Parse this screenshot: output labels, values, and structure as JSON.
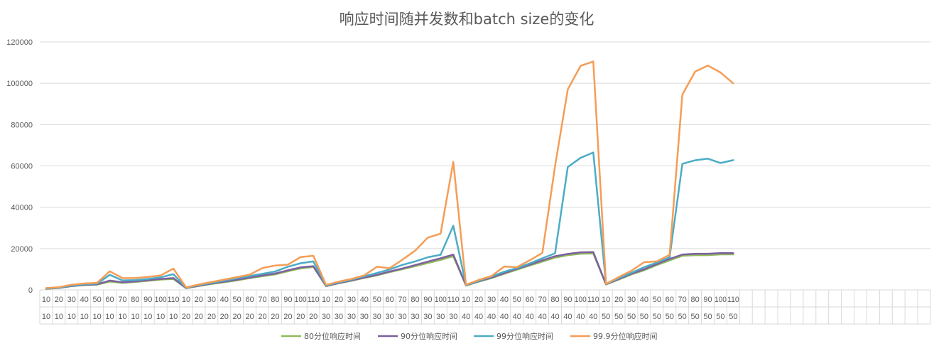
{
  "chart_data": {
    "type": "line",
    "title": "响应时间随并发数和batch size的变化",
    "xlabel": "",
    "ylabel": "",
    "ylim": [
      0,
      120000
    ],
    "yticks": [
      "0",
      "20000",
      "40000",
      "60000",
      "80000",
      "100000",
      "120000"
    ],
    "grid": true,
    "legend_position": "bottom",
    "x_level1": [
      "10",
      "20",
      "30",
      "40",
      "50",
      "60",
      "70",
      "80",
      "90",
      "100",
      "110",
      "10",
      "20",
      "30",
      "40",
      "50",
      "60",
      "70",
      "80",
      "90",
      "100",
      "110",
      "10",
      "20",
      "30",
      "40",
      "50",
      "60",
      "70",
      "80",
      "90",
      "100",
      "110",
      "10",
      "20",
      "30",
      "40",
      "50",
      "60",
      "70",
      "80",
      "90",
      "100",
      "110",
      "10",
      "20",
      "30",
      "40",
      "50",
      "60",
      "70",
      "80",
      "90",
      "100",
      "110"
    ],
    "x_level2": [
      "10",
      "10",
      "10",
      "10",
      "10",
      "10",
      "10",
      "10",
      "10",
      "10",
      "10",
      "20",
      "20",
      "20",
      "20",
      "20",
      "20",
      "20",
      "20",
      "20",
      "20",
      "20",
      "30",
      "30",
      "30",
      "30",
      "30",
      "30",
      "30",
      "30",
      "30",
      "30",
      "30",
      "40",
      "40",
      "40",
      "40",
      "40",
      "40",
      "40",
      "40",
      "40",
      "40",
      "40",
      "50",
      "50",
      "50",
      "50",
      "50",
      "50",
      "50",
      "50",
      "50",
      "50",
      "50"
    ],
    "empty_categories": 15,
    "series": [
      {
        "name": "80分位响应时间",
        "color": "#8fba5a",
        "values": [
          500,
          900,
          1800,
          2300,
          2500,
          4000,
          3400,
          3800,
          4400,
          5000,
          5300,
          800,
          1900,
          2900,
          3700,
          4600,
          5700,
          6600,
          7500,
          9000,
          10400,
          11100,
          1800,
          3200,
          4400,
          5800,
          7000,
          8600,
          10000,
          11500,
          13000,
          14500,
          16300,
          2100,
          4000,
          5700,
          7800,
          9800,
          11800,
          13700,
          15600,
          16800,
          17500,
          17600,
          2600,
          5000,
          7500,
          9500,
          12000,
          14300,
          16500,
          16800,
          16800,
          17200,
          17200
        ]
      },
      {
        "name": "90分位响应时间",
        "color": "#7d60a0",
        "values": [
          600,
          1000,
          1900,
          2400,
          2700,
          4500,
          3700,
          4100,
          4700,
          5300,
          5700,
          900,
          2000,
          3100,
          4000,
          4900,
          6000,
          7000,
          7900,
          9500,
          10900,
          11500,
          1900,
          3300,
          4600,
          6000,
          7300,
          8900,
          10400,
          12000,
          13700,
          15300,
          17100,
          2200,
          4200,
          6000,
          8100,
          10200,
          12200,
          14300,
          16300,
          17400,
          18200,
          18300,
          2700,
          5200,
          7800,
          10000,
          12500,
          15000,
          17100,
          17500,
          17500,
          17800,
          17800
        ]
      },
      {
        "name": "99分位响应时间",
        "color": "#4bacc6",
        "values": [
          700,
          1100,
          2100,
          2700,
          3000,
          7300,
          4600,
          4700,
          5300,
          6100,
          7600,
          1000,
          2300,
          3400,
          4500,
          5600,
          6700,
          7800,
          8900,
          11200,
          12900,
          13800,
          2100,
          3600,
          5000,
          6600,
          8200,
          9900,
          12100,
          13800,
          15800,
          17000,
          31000,
          2300,
          4400,
          6500,
          8800,
          10600,
          12800,
          15300,
          17700,
          59500,
          63900,
          66500,
          2800,
          5600,
          8300,
          11000,
          13200,
          15800,
          61000,
          62700,
          63500,
          61400,
          62800
        ]
      },
      {
        "name": "99.9分位响应时间",
        "color": "#f59d56",
        "values": [
          900,
          1300,
          2500,
          3100,
          3400,
          9000,
          5700,
          5700,
          6300,
          7000,
          10300,
          1200,
          2600,
          3800,
          5000,
          6200,
          7400,
          10600,
          11800,
          12200,
          15900,
          16500,
          2400,
          4000,
          5300,
          7000,
          11200,
          10500,
          14600,
          19000,
          25300,
          27200,
          62000,
          2500,
          4800,
          6700,
          11300,
          11000,
          14300,
          17900,
          60000,
          97000,
          108400,
          110500,
          2900,
          6200,
          9300,
          13400,
          13800,
          17000,
          94500,
          105600,
          108600,
          105200,
          100000
        ]
      }
    ]
  }
}
